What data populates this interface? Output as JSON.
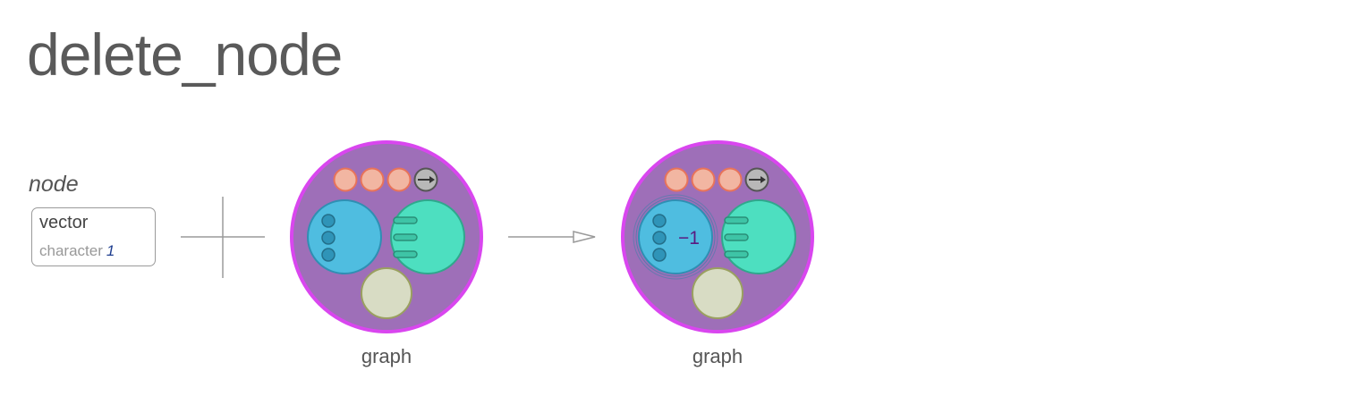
{
  "title": "delete_node",
  "argument": {
    "name": "node",
    "type": "vector",
    "subtype": "character",
    "length": "1"
  },
  "operator": "plus-icon",
  "arrow": "right-arrow-icon",
  "input_graph": {
    "caption": "graph"
  },
  "output_graph": {
    "caption": "graph",
    "delta_label": "−1"
  },
  "colors": {
    "graph_fill": "#9e6fb8",
    "graph_ring": "#d946ef",
    "nodes_fill": "#4fbde0",
    "edges_fill": "#4ddfc0",
    "attrs_fill": "#d8dcc4",
    "meta_fill": "#f2b6a2",
    "delta_text": "#5a1a80"
  }
}
